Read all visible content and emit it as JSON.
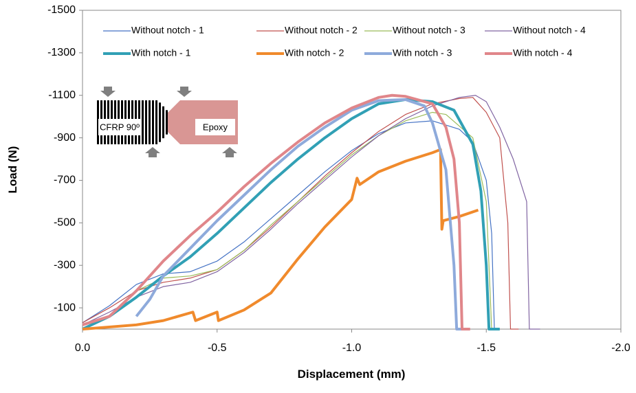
{
  "chart_data": {
    "type": "line",
    "x_label": "Displacement (mm)",
    "y_label": "Load (N)",
    "xlim": [
      0,
      -2
    ],
    "ylim": [
      0,
      -1500
    ],
    "xticks": [
      {
        "value": 0,
        "label": "0.0"
      },
      -0.5,
      {
        "value": -1,
        "label": "-1.0"
      },
      -1.5,
      {
        "value": -2,
        "label": "-2.0"
      }
    ],
    "yticks": [
      -100,
      -300,
      -500,
      -700,
      -900,
      -1100,
      -1300,
      -1500
    ],
    "annotations": [
      "CFRP 90º",
      "Epoxy"
    ],
    "series": [
      {
        "name": "Without notch - 1",
        "color": "#4472c4",
        "line_width": 1.2,
        "x": [
          0,
          -0.1,
          -0.2,
          -0.3,
          -0.4,
          -0.5,
          -0.6,
          -0.7,
          -0.8,
          -0.9,
          -1.0,
          -1.1,
          -1.2,
          -1.3,
          -1.4,
          -1.45,
          -1.5,
          -1.52,
          -1.53,
          -1.55
        ],
        "values": [
          -30,
          -110,
          -210,
          -260,
          -270,
          -320,
          -410,
          -520,
          -630,
          -740,
          -840,
          -920,
          -970,
          -980,
          -940,
          -880,
          -700,
          -450,
          0,
          0
        ]
      },
      {
        "name": "Without notch - 2",
        "color": "#c0504d",
        "line_width": 1.2,
        "x": [
          0,
          -0.1,
          -0.2,
          -0.3,
          -0.4,
          -0.5,
          -0.6,
          -0.7,
          -0.8,
          -0.9,
          -1.0,
          -1.1,
          -1.2,
          -1.3,
          -1.4,
          -1.45,
          -1.5,
          -1.55,
          -1.58,
          -1.59,
          -1.62
        ],
        "values": [
          -30,
          -100,
          -180,
          -220,
          -240,
          -280,
          -370,
          -480,
          -600,
          -720,
          -830,
          -930,
          -1010,
          -1060,
          -1085,
          -1090,
          -1020,
          -900,
          -500,
          0,
          0
        ]
      },
      {
        "name": "Without notch - 3",
        "color": "#9bbb59",
        "line_width": 1.2,
        "x": [
          0,
          -0.1,
          -0.2,
          -0.3,
          -0.4,
          -0.5,
          -0.6,
          -0.7,
          -0.8,
          -0.9,
          -1.0,
          -1.1,
          -1.2,
          -1.3,
          -1.35,
          -1.45,
          -1.5,
          -1.52,
          -1.55
        ],
        "values": [
          -20,
          -60,
          -180,
          -240,
          -250,
          -280,
          -370,
          -490,
          -600,
          -710,
          -820,
          -910,
          -980,
          -1020,
          -1010,
          -900,
          -600,
          0,
          0
        ]
      },
      {
        "name": "Without notch - 4",
        "color": "#8064a2",
        "line_width": 1.2,
        "x": [
          0,
          -0.1,
          -0.2,
          -0.3,
          -0.4,
          -0.5,
          -0.6,
          -0.7,
          -0.8,
          -0.9,
          -1.0,
          -1.1,
          -1.2,
          -1.3,
          -1.4,
          -1.46,
          -1.5,
          -1.55,
          -1.6,
          -1.65,
          -1.66,
          -1.7
        ],
        "values": [
          -20,
          -80,
          -150,
          -200,
          -220,
          -270,
          -360,
          -470,
          -590,
          -700,
          -810,
          -910,
          -990,
          -1050,
          -1090,
          -1100,
          -1070,
          -950,
          -800,
          -600,
          0,
          0
        ]
      },
      {
        "name": "With notch - 1",
        "color": "#31a0b5",
        "line_width": 4,
        "x": [
          0,
          -0.1,
          -0.2,
          -0.3,
          -0.4,
          -0.5,
          -0.6,
          -0.7,
          -0.8,
          -0.9,
          -1.0,
          -1.1,
          -1.2,
          -1.3,
          -1.38,
          -1.45,
          -1.48,
          -1.5,
          -1.51,
          -1.55
        ],
        "values": [
          0,
          -60,
          -150,
          -250,
          -340,
          -450,
          -570,
          -690,
          -800,
          -900,
          -990,
          -1060,
          -1080,
          -1070,
          -1030,
          -870,
          -650,
          -300,
          0,
          0
        ]
      },
      {
        "name": "With notch - 2",
        "color": "#f08a2c",
        "line_width": 4,
        "x": [
          0,
          -0.2,
          -0.3,
          -0.41,
          -0.42,
          -0.5,
          -0.505,
          -0.6,
          -0.7,
          -0.8,
          -0.9,
          -1.0,
          -1.02,
          -1.03,
          -1.1,
          -1.2,
          -1.3,
          -1.33,
          -1.335,
          -1.34,
          -1.4,
          -1.47
        ],
        "values": [
          0,
          -20,
          -40,
          -80,
          -40,
          -80,
          -40,
          -90,
          -170,
          -330,
          -480,
          -610,
          -710,
          -680,
          -740,
          -790,
          -830,
          -845,
          -470,
          -510,
          -530,
          -560
        ]
      },
      {
        "name": "With notch - 3",
        "color": "#8eaadb",
        "line_width": 4,
        "x": [
          -0.2,
          -0.25,
          -0.3,
          -0.4,
          -0.5,
          -0.6,
          -0.7,
          -0.8,
          -0.9,
          -1.0,
          -1.1,
          -1.2,
          -1.27,
          -1.3,
          -1.35,
          -1.38,
          -1.39,
          -1.42
        ],
        "values": [
          -60,
          -140,
          -250,
          -380,
          -510,
          -630,
          -750,
          -860,
          -950,
          -1030,
          -1075,
          -1080,
          -1050,
          -970,
          -750,
          -300,
          0,
          0
        ]
      },
      {
        "name": "With notch - 4",
        "color": "#e0868a",
        "line_width": 4,
        "x": [
          0,
          -0.1,
          -0.2,
          -0.3,
          -0.4,
          -0.5,
          -0.6,
          -0.7,
          -0.8,
          -0.9,
          -1.0,
          -1.1,
          -1.15,
          -1.2,
          -1.3,
          -1.35,
          -1.38,
          -1.4,
          -1.41,
          -1.44
        ],
        "values": [
          -20,
          -60,
          -180,
          -320,
          -440,
          -550,
          -670,
          -780,
          -880,
          -970,
          -1040,
          -1090,
          -1100,
          -1095,
          -1060,
          -950,
          -800,
          -500,
          0,
          0
        ]
      }
    ]
  }
}
